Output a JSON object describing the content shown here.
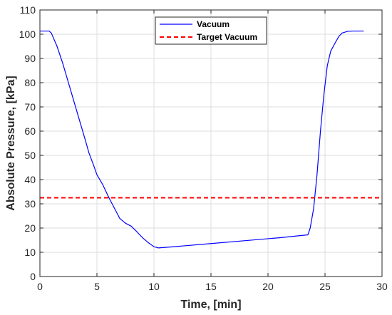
{
  "chart_data": {
    "type": "line",
    "xlabel": "Time, [min]",
    "ylabel": "Absolute Pressure, [kPa]",
    "xlim": [
      0,
      30
    ],
    "ylim": [
      0,
      110
    ],
    "xticks": [
      0,
      5,
      10,
      15,
      20,
      25,
      30
    ],
    "yticks": [
      0,
      10,
      20,
      30,
      40,
      50,
      60,
      70,
      80,
      90,
      100,
      110
    ],
    "grid": true,
    "legend_position": "top-center",
    "series": [
      {
        "name": "Vacuum",
        "color": "#0000ff",
        "style": "solid",
        "x": [
          0,
          0.8,
          1.0,
          1.5,
          2.0,
          2.5,
          3.0,
          3.5,
          4.0,
          4.3,
          4.7,
          5.0,
          5.5,
          6.0,
          6.5,
          7.0,
          7.5,
          8.0,
          8.5,
          9.0,
          9.5,
          10.0,
          10.4,
          12,
          15,
          18,
          21,
          23.5,
          23.7,
          24.0,
          24.3,
          24.6,
          24.9,
          25.2,
          25.5,
          25.9,
          26.2,
          26.5,
          27.0,
          27.5,
          28.4
        ],
        "y": [
          101.3,
          101.3,
          100.5,
          95,
          88,
          80,
          72,
          64,
          56,
          51,
          46,
          42,
          38,
          33,
          28.5,
          24,
          22,
          20.8,
          18.5,
          16,
          14,
          12.3,
          11.8,
          12.4,
          13.6,
          14.8,
          16,
          17.2,
          20,
          28,
          42,
          60,
          75,
          87,
          93,
          96.5,
          99,
          100.5,
          101.2,
          101.3,
          101.3
        ]
      },
      {
        "name": "Target Vacuum",
        "color": "#ff0000",
        "style": "dashed",
        "x": [
          0,
          30
        ],
        "y": [
          32.5,
          32.5
        ]
      }
    ]
  }
}
